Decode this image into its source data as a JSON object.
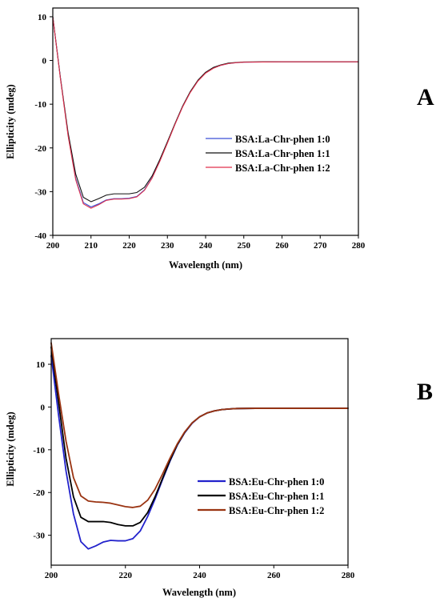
{
  "chart_data": [
    {
      "panel_label": "A",
      "type": "line",
      "xlabel": "Wavelength (nm)",
      "ylabel": "Ellipticity (mdeg)",
      "xlim": [
        200,
        280
      ],
      "ylim": [
        -40,
        12
      ],
      "xticks": [
        200,
        210,
        220,
        230,
        240,
        250,
        260,
        270,
        280
      ],
      "yticks": [
        10,
        0,
        -10,
        -20,
        -30,
        -40
      ],
      "legend_position": "center-right",
      "series": [
        {
          "name": "BSA:La-Chr-phen 1:0",
          "color": "#3a4fd6",
          "width": 1.1,
          "x": [
            200,
            202,
            204,
            206,
            208,
            210,
            212,
            214,
            216,
            218,
            220,
            222,
            224,
            226,
            228,
            230,
            232,
            234,
            236,
            238,
            240,
            242,
            244,
            246,
            248,
            250,
            255,
            260,
            265,
            270,
            275,
            280
          ],
          "y": [
            10,
            -4,
            -17,
            -27,
            -32.5,
            -33.5,
            -32.8,
            -31.9,
            -31.6,
            -31.6,
            -31.5,
            -31.1,
            -29.6,
            -26.8,
            -23.0,
            -18.8,
            -14.5,
            -10.5,
            -7.2,
            -4.6,
            -2.8,
            -1.7,
            -1.1,
            -0.7,
            -0.5,
            -0.4,
            -0.35,
            -0.3,
            -0.3,
            -0.3,
            -0.3,
            -0.3
          ]
        },
        {
          "name": "BSA:La-Chr-phen 1:1",
          "color": "#111111",
          "width": 1.1,
          "x": [
            200,
            202,
            204,
            206,
            208,
            210,
            212,
            214,
            216,
            218,
            220,
            222,
            224,
            226,
            228,
            230,
            232,
            234,
            236,
            238,
            240,
            242,
            244,
            246,
            248,
            250,
            255,
            260,
            265,
            270,
            275,
            280
          ],
          "y": [
            10,
            -4,
            -16.5,
            -26,
            -31.3,
            -32.3,
            -31.6,
            -30.8,
            -30.5,
            -30.5,
            -30.5,
            -30.2,
            -29.0,
            -26.4,
            -22.7,
            -18.6,
            -14.4,
            -10.4,
            -7.1,
            -4.5,
            -2.7,
            -1.6,
            -1.0,
            -0.6,
            -0.45,
            -0.35,
            -0.3,
            -0.3,
            -0.3,
            -0.3,
            -0.3,
            -0.3
          ]
        },
        {
          "name": "BSA:La-Chr-phen 1:2",
          "color": "#e0324c",
          "width": 1.1,
          "x": [
            200,
            202,
            204,
            206,
            208,
            210,
            212,
            214,
            216,
            218,
            220,
            222,
            224,
            226,
            228,
            230,
            232,
            234,
            236,
            238,
            240,
            242,
            244,
            246,
            248,
            250,
            255,
            260,
            265,
            270,
            275,
            280
          ],
          "y": [
            10,
            -4.2,
            -17.2,
            -27.3,
            -32.8,
            -33.8,
            -33.0,
            -32.0,
            -31.7,
            -31.7,
            -31.6,
            -31.2,
            -29.7,
            -26.9,
            -23.1,
            -18.9,
            -14.6,
            -10.6,
            -7.3,
            -4.7,
            -2.9,
            -1.8,
            -1.1,
            -0.7,
            -0.5,
            -0.4,
            -0.35,
            -0.3,
            -0.3,
            -0.3,
            -0.3,
            -0.3
          ]
        }
      ]
    },
    {
      "panel_label": "B",
      "type": "line",
      "xlabel": "Wavelength (nm)",
      "ylabel": "Ellipticity (mdeg)",
      "xlim": [
        200,
        280
      ],
      "ylim": [
        -37,
        16
      ],
      "xticks": [
        200,
        220,
        240,
        260,
        280
      ],
      "yticks": [
        10,
        0,
        -10,
        -20,
        -30
      ],
      "legend_position": "bottom-right",
      "series": [
        {
          "name": "BSA:Eu-Chr-phen 1:0",
          "color": "#2222cc",
          "width": 1.8,
          "x": [
            200,
            202,
            204,
            206,
            208,
            210,
            212,
            214,
            216,
            218,
            220,
            222,
            224,
            226,
            228,
            230,
            232,
            234,
            236,
            238,
            240,
            242,
            244,
            246,
            248,
            250,
            255,
            260,
            265,
            270,
            275,
            280
          ],
          "y": [
            12,
            -2,
            -15,
            -25,
            -31.5,
            -33.2,
            -32.5,
            -31.6,
            -31.2,
            -31.3,
            -31.3,
            -30.8,
            -29.0,
            -25.6,
            -21.5,
            -17.0,
            -12.7,
            -8.9,
            -6.0,
            -3.8,
            -2.3,
            -1.4,
            -0.9,
            -0.6,
            -0.45,
            -0.35,
            -0.3,
            -0.3,
            -0.3,
            -0.3,
            -0.3,
            -0.3
          ]
        },
        {
          "name": "BSA:Eu-Chr-phen 1:1",
          "color": "#000000",
          "width": 1.8,
          "x": [
            200,
            202,
            204,
            206,
            208,
            210,
            212,
            214,
            216,
            218,
            220,
            222,
            224,
            226,
            228,
            230,
            232,
            234,
            236,
            238,
            240,
            242,
            244,
            246,
            248,
            250,
            255,
            260,
            265,
            270,
            275,
            280
          ],
          "y": [
            14,
            1,
            -12,
            -21,
            -25.8,
            -26.8,
            -26.8,
            -26.8,
            -27.0,
            -27.5,
            -27.8,
            -27.8,
            -27.0,
            -24.7,
            -21.0,
            -16.7,
            -12.5,
            -8.8,
            -5.9,
            -3.7,
            -2.3,
            -1.4,
            -0.9,
            -0.6,
            -0.45,
            -0.35,
            -0.3,
            -0.3,
            -0.3,
            -0.3,
            -0.3,
            -0.3
          ]
        },
        {
          "name": "BSA:Eu-Chr-phen 1:2",
          "color": "#9a3412",
          "width": 1.8,
          "x": [
            200,
            202,
            204,
            206,
            208,
            210,
            212,
            214,
            216,
            218,
            220,
            222,
            224,
            226,
            228,
            230,
            232,
            234,
            236,
            238,
            240,
            242,
            244,
            246,
            248,
            250,
            255,
            260,
            265,
            270,
            275,
            280
          ],
          "y": [
            15,
            3,
            -8,
            -16.5,
            -20.8,
            -22.0,
            -22.2,
            -22.3,
            -22.5,
            -22.9,
            -23.3,
            -23.5,
            -23.2,
            -21.8,
            -19.2,
            -15.7,
            -12.0,
            -8.6,
            -5.8,
            -3.7,
            -2.3,
            -1.4,
            -0.9,
            -0.6,
            -0.45,
            -0.35,
            -0.3,
            -0.3,
            -0.3,
            -0.3,
            -0.3,
            -0.3
          ]
        }
      ]
    }
  ]
}
